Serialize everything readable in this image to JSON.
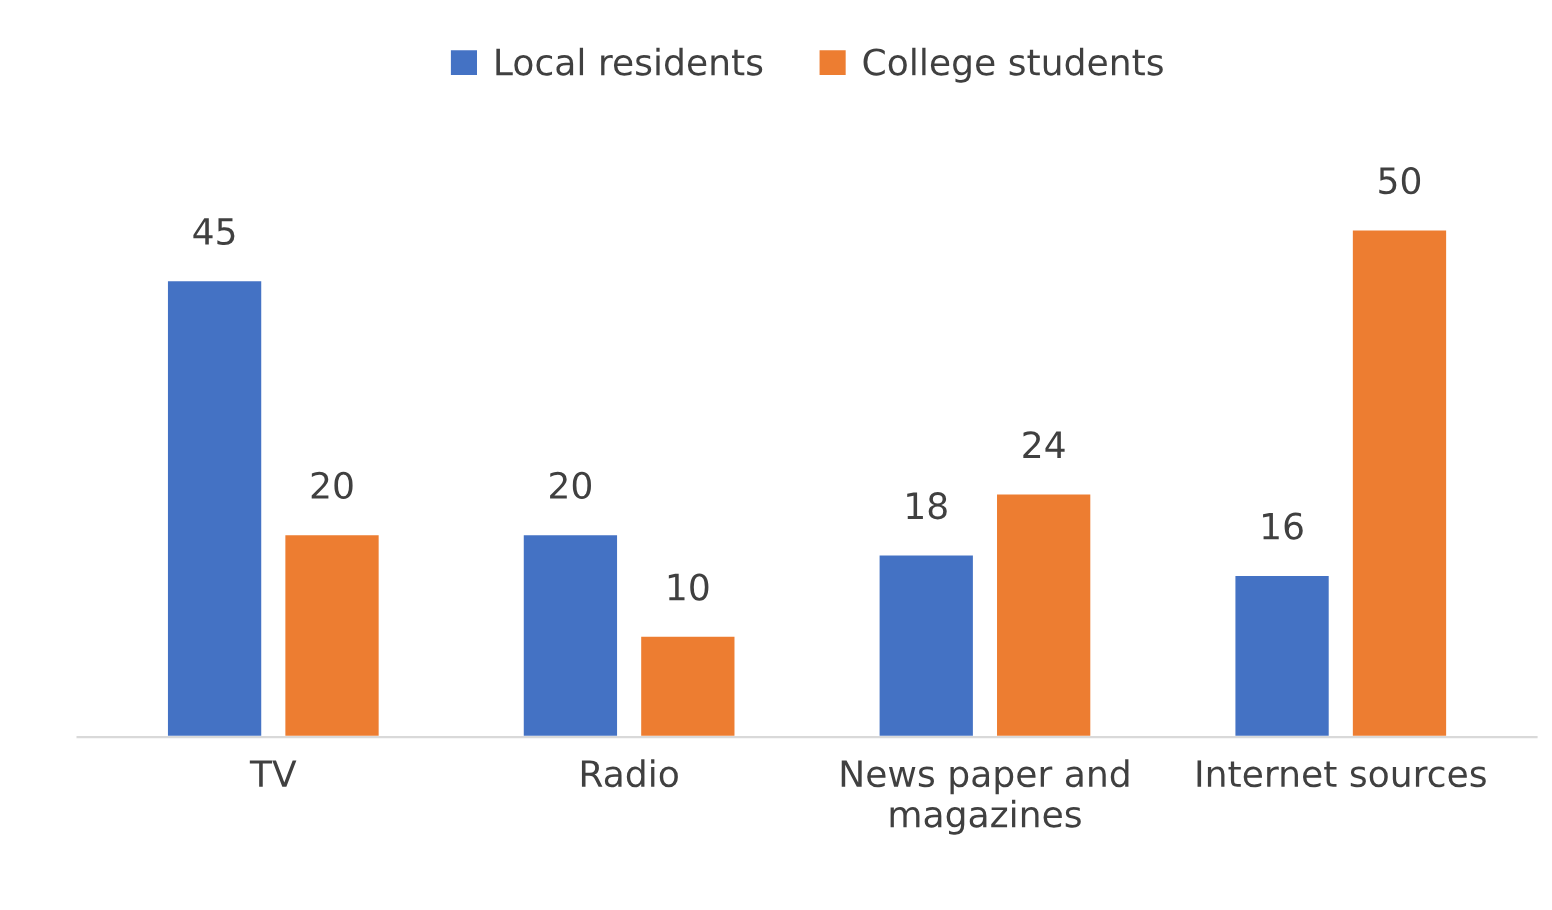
{
  "chart_data": {
    "type": "bar",
    "categories": [
      "TV",
      "Radio",
      "News paper and\nmagazines",
      "Internet sources"
    ],
    "series": [
      {
        "name": "Local residents",
        "color": "#4472c4",
        "values": [
          45,
          20,
          18,
          16
        ]
      },
      {
        "name": "College students",
        "color": "#ed7d31",
        "values": [
          20,
          10,
          24,
          50
        ]
      }
    ],
    "data_labels": true,
    "legend": "top",
    "grid": false
  }
}
